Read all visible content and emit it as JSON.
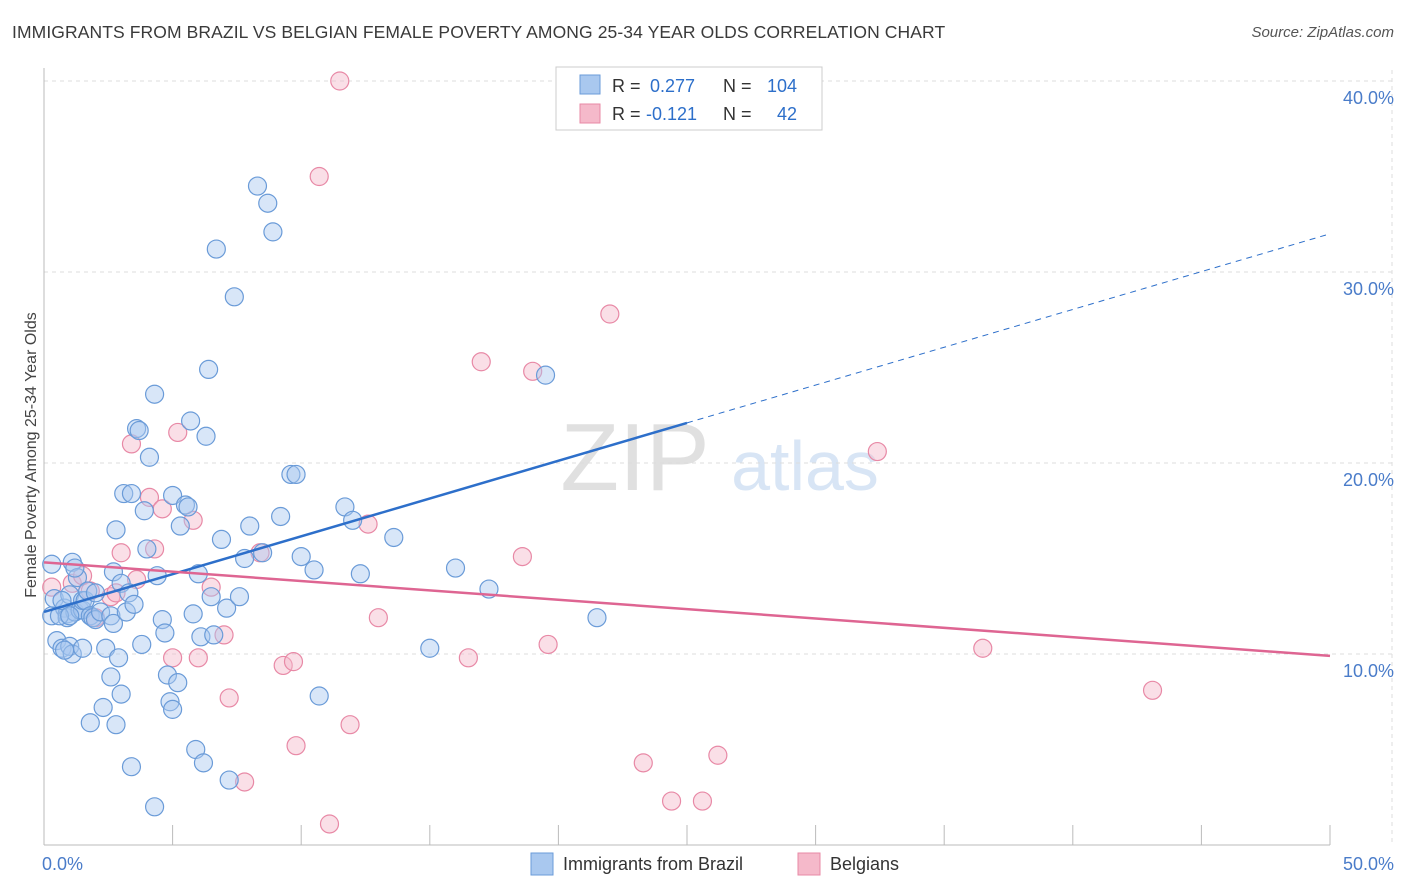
{
  "title": "IMMIGRANTS FROM BRAZIL VS BELGIAN FEMALE POVERTY AMONG 25-34 YEAR OLDS CORRELATION CHART",
  "source": "Source: ZipAtlas.com",
  "watermark": {
    "zip": "ZIP",
    "atlas": "atlas"
  },
  "colors": {
    "blue_fill": "#a9c8ef",
    "blue_stroke": "#6a9bd8",
    "blue_line": "#2d6fca",
    "pink_fill": "#f5b9ca",
    "pink_stroke": "#e889a6",
    "pink_line": "#de6592",
    "axis_text": "#4a7cc9",
    "grid": "#dddddd"
  },
  "legend_stats": [
    {
      "r_label": "R =",
      "r_value": "0.277",
      "n_label": "N =",
      "n_value": "104"
    },
    {
      "r_label": "R =",
      "r_value": "-0.121",
      "n_label": "N =",
      "n_value": "42"
    }
  ],
  "chart_data": {
    "type": "scatter",
    "title": "IMMIGRANTS FROM BRAZIL VS BELGIAN FEMALE POVERTY AMONG 25-34 YEAR OLDS CORRELATION CHART",
    "xlabel": "",
    "ylabel": "Female Poverty Among 25-34 Year Olds",
    "xlim": [
      0,
      50
    ],
    "ylim": [
      0,
      40
    ],
    "x_tick_labels": [
      "0.0%",
      "50.0%"
    ],
    "y_ticks": [
      10,
      20,
      30,
      40
    ],
    "y_tick_labels": [
      "10.0%",
      "20.0%",
      "30.0%",
      "40.0%"
    ],
    "grid": true,
    "legend_position": "bottom-center",
    "series": [
      {
        "name": "Immigrants from Brazil",
        "color": "#a9c8ef",
        "trend": {
          "x": [
            0,
            25
          ],
          "y": [
            12.2,
            22.1
          ],
          "dashed_extension": {
            "x": [
              25,
              50
            ],
            "y": [
              22.1,
              32.0
            ]
          }
        },
        "points": [
          [
            0.3,
            14.7
          ],
          [
            0.3,
            12.0
          ],
          [
            0.4,
            12.9
          ],
          [
            0.5,
            10.7
          ],
          [
            0.7,
            10.3
          ],
          [
            0.8,
            12.4
          ],
          [
            0.9,
            12.1
          ],
          [
            0.9,
            11.9
          ],
          [
            1.0,
            13.1
          ],
          [
            1.0,
            10.4
          ],
          [
            1.1,
            10.0
          ],
          [
            1.1,
            14.8
          ],
          [
            1.2,
            12.2
          ],
          [
            1.3,
            14.0
          ],
          [
            1.4,
            12.3
          ],
          [
            1.5,
            12.3
          ],
          [
            1.5,
            12.8
          ],
          [
            1.6,
            12.8
          ],
          [
            1.7,
            13.3
          ],
          [
            1.8,
            12.0
          ],
          [
            1.9,
            11.9
          ],
          [
            2.0,
            11.8
          ],
          [
            2.0,
            13.2
          ],
          [
            2.2,
            12.2
          ],
          [
            2.4,
            10.3
          ],
          [
            2.6,
            12.0
          ],
          [
            2.7,
            11.6
          ],
          [
            2.7,
            14.3
          ],
          [
            2.8,
            16.5
          ],
          [
            2.9,
            9.8
          ],
          [
            3.0,
            13.7
          ],
          [
            3.1,
            18.4
          ],
          [
            3.2,
            12.2
          ],
          [
            3.3,
            13.2
          ],
          [
            3.4,
            18.4
          ],
          [
            3.5,
            12.6
          ],
          [
            3.6,
            21.8
          ],
          [
            3.7,
            21.7
          ],
          [
            3.8,
            10.5
          ],
          [
            3.9,
            17.5
          ],
          [
            4.0,
            15.5
          ],
          [
            4.1,
            20.3
          ],
          [
            4.3,
            23.6
          ],
          [
            4.4,
            14.1
          ],
          [
            4.6,
            11.8
          ],
          [
            4.7,
            11.1
          ],
          [
            4.8,
            8.9
          ],
          [
            4.9,
            7.5
          ],
          [
            5.0,
            18.3
          ],
          [
            5.0,
            7.1
          ],
          [
            5.2,
            8.5
          ],
          [
            5.3,
            16.7
          ],
          [
            5.5,
            17.8
          ],
          [
            5.6,
            17.7
          ],
          [
            5.7,
            22.2
          ],
          [
            5.8,
            12.1
          ],
          [
            6.0,
            14.2
          ],
          [
            6.1,
            10.9
          ],
          [
            6.3,
            21.4
          ],
          [
            6.4,
            24.9
          ],
          [
            6.5,
            13.0
          ],
          [
            6.6,
            11.0
          ],
          [
            6.7,
            31.2
          ],
          [
            6.9,
            16.0
          ],
          [
            7.1,
            12.4
          ],
          [
            7.2,
            3.4
          ],
          [
            7.4,
            28.7
          ],
          [
            7.6,
            13.0
          ],
          [
            7.8,
            15.0
          ],
          [
            8.0,
            16.7
          ],
          [
            8.3,
            34.5
          ],
          [
            8.5,
            15.3
          ],
          [
            8.7,
            33.6
          ],
          [
            8.9,
            32.1
          ],
          [
            9.2,
            17.2
          ],
          [
            9.6,
            19.4
          ],
          [
            9.8,
            19.4
          ],
          [
            10.0,
            15.1
          ],
          [
            10.5,
            14.4
          ],
          [
            10.7,
            7.8
          ],
          [
            11.7,
            17.7
          ],
          [
            12.0,
            17.0
          ],
          [
            12.3,
            14.2
          ],
          [
            13.6,
            16.1
          ],
          [
            15.0,
            10.3
          ],
          [
            16.0,
            14.5
          ],
          [
            17.3,
            13.4
          ],
          [
            19.5,
            24.6
          ],
          [
            21.5,
            11.9
          ],
          [
            1.5,
            10.3
          ],
          [
            1.8,
            6.4
          ],
          [
            2.3,
            7.2
          ],
          [
            2.6,
            8.8
          ],
          [
            2.8,
            6.3
          ],
          [
            3.0,
            7.9
          ],
          [
            3.4,
            4.1
          ],
          [
            4.3,
            2.0
          ],
          [
            5.9,
            5.0
          ],
          [
            6.2,
            4.3
          ],
          [
            0.6,
            12.0
          ],
          [
            0.7,
            12.8
          ],
          [
            0.8,
            10.2
          ],
          [
            1.0,
            12.0
          ],
          [
            1.2,
            14.5
          ]
        ]
      },
      {
        "name": "Belgians",
        "color": "#f5b9ca",
        "trend": {
          "x": [
            0,
            50
          ],
          "y": [
            14.8,
            9.9
          ]
        },
        "points": [
          [
            0.3,
            13.5
          ],
          [
            1.1,
            13.7
          ],
          [
            1.5,
            14.1
          ],
          [
            1.8,
            13.3
          ],
          [
            2.0,
            11.9
          ],
          [
            2.6,
            13.0
          ],
          [
            2.8,
            13.2
          ],
          [
            3.0,
            15.3
          ],
          [
            3.4,
            21.0
          ],
          [
            3.6,
            13.9
          ],
          [
            4.1,
            18.2
          ],
          [
            4.3,
            15.5
          ],
          [
            4.6,
            17.6
          ],
          [
            5.0,
            9.8
          ],
          [
            5.2,
            21.6
          ],
          [
            5.8,
            17.0
          ],
          [
            6.0,
            9.8
          ],
          [
            6.5,
            13.5
          ],
          [
            7.0,
            11.0
          ],
          [
            7.2,
            7.7
          ],
          [
            7.8,
            3.3
          ],
          [
            8.4,
            15.3
          ],
          [
            9.3,
            9.4
          ],
          [
            9.7,
            9.6
          ],
          [
            9.8,
            5.2
          ],
          [
            10.7,
            35.0
          ],
          [
            11.1,
            1.1
          ],
          [
            11.5,
            40.0
          ],
          [
            11.9,
            6.3
          ],
          [
            12.6,
            16.8
          ],
          [
            13.0,
            11.9
          ],
          [
            16.5,
            9.8
          ],
          [
            17.0,
            25.3
          ],
          [
            18.6,
            15.1
          ],
          [
            19.0,
            24.8
          ],
          [
            19.6,
            10.5
          ],
          [
            22.0,
            27.8
          ],
          [
            23.3,
            4.3
          ],
          [
            24.4,
            2.3
          ],
          [
            25.6,
            2.3
          ],
          [
            26.2,
            4.7
          ],
          [
            32.4,
            20.6
          ]
        ],
        "extra_points": [
          [
            36.5,
            10.3
          ],
          [
            43.1,
            8.1
          ]
        ]
      }
    ]
  },
  "legend": [
    {
      "label": "Immigrants from Brazil"
    },
    {
      "label": "Belgians"
    }
  ]
}
